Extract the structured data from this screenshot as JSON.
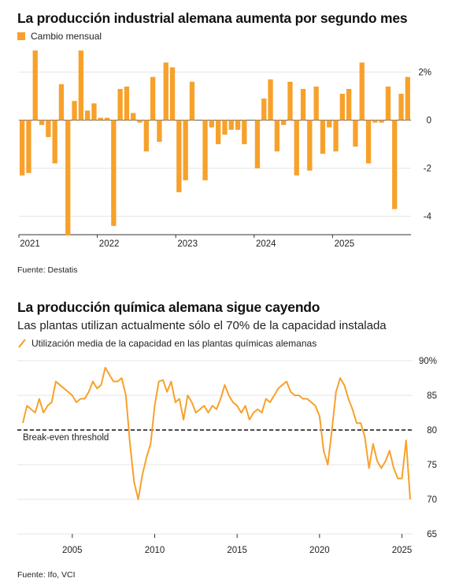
{
  "colors": {
    "accent": "#F7A12B",
    "grid": "#DDDDDD",
    "text": "#222222"
  },
  "chart_data": [
    {
      "type": "bar",
      "title": "La producción industrial alemana aumenta por segundo mes",
      "legend": "Cambio mensual",
      "legend_placement": "top-left",
      "source": "Fuente: Destatis",
      "yticks": [
        {
          "value": 2,
          "label": "2%"
        },
        {
          "value": 0,
          "label": "0"
        },
        {
          "value": -2,
          "label": "-2"
        },
        {
          "value": -4,
          "label": "-4"
        }
      ],
      "xticks": [
        "2021",
        "2022",
        "2023",
        "2024",
        "2025"
      ],
      "ylim": [
        -4.7,
        3.2
      ],
      "grid": true,
      "start": "2021-01",
      "values": [
        -2.3,
        -2.2,
        2.9,
        -0.2,
        -0.7,
        -1.8,
        1.5,
        -4.8,
        0.8,
        2.9,
        0.4,
        0.7,
        0.1,
        0.1,
        -4.4,
        1.3,
        1.4,
        0.3,
        -0.1,
        -1.3,
        1.8,
        -0.9,
        2.4,
        2.2,
        -3.0,
        -2.5,
        1.6,
        0.0,
        -2.5,
        -0.3,
        -1.0,
        -0.6,
        -0.4,
        -0.4,
        -1.0,
        0.0,
        -2.0,
        0.9,
        1.7,
        -1.3,
        -0.2,
        1.6,
        -2.3,
        1.3,
        -2.1,
        1.4,
        -1.4,
        -0.3,
        -1.3,
        1.1,
        1.3,
        -1.1,
        2.4,
        -1.8,
        -0.1,
        -0.1,
        1.4,
        -3.7,
        1.1,
        1.8
      ]
    },
    {
      "type": "line",
      "title": "La producción química alemana sigue cayendo",
      "subtitle": "Las plantas utilizan actualmente sólo el 70% de la capacidad instalada",
      "legend": "Utilización media de la capacidad en las plantas químicas alemanas",
      "legend_placement": "top-left",
      "source": "Fuente: Ifo, VCI",
      "yticks": [
        {
          "value": 90,
          "label": "90%"
        },
        {
          "value": 85,
          "label": "85"
        },
        {
          "value": 80,
          "label": "80"
        },
        {
          "value": 75,
          "label": "75"
        },
        {
          "value": 70,
          "label": "70"
        },
        {
          "value": 65,
          "label": "65"
        }
      ],
      "xticks": [
        "2005",
        "2010",
        "2015",
        "2020",
        "2025"
      ],
      "xlim": [
        2002.0,
        2025.75
      ],
      "ylim": [
        65,
        90
      ],
      "grid": true,
      "threshold": {
        "value": 80,
        "label": "Break-even threshold"
      },
      "x": [
        2002.0,
        2002.25,
        2002.5,
        2002.75,
        2003.0,
        2003.25,
        2003.5,
        2003.75,
        2004.0,
        2004.25,
        2004.5,
        2004.75,
        2005.0,
        2005.25,
        2005.5,
        2005.75,
        2006.0,
        2006.25,
        2006.5,
        2006.75,
        2007.0,
        2007.25,
        2007.5,
        2007.75,
        2008.0,
        2008.25,
        2008.5,
        2008.75,
        2009.0,
        2009.25,
        2009.5,
        2009.75,
        2010.0,
        2010.25,
        2010.5,
        2010.75,
        2011.0,
        2011.25,
        2011.5,
        2011.75,
        2012.0,
        2012.25,
        2012.5,
        2012.75,
        2013.0,
        2013.25,
        2013.5,
        2013.75,
        2014.0,
        2014.25,
        2014.5,
        2014.75,
        2015.0,
        2015.25,
        2015.5,
        2015.75,
        2016.0,
        2016.25,
        2016.5,
        2016.75,
        2017.0,
        2017.25,
        2017.5,
        2017.75,
        2018.0,
        2018.25,
        2018.5,
        2018.75,
        2019.0,
        2019.25,
        2019.5,
        2019.75,
        2020.0,
        2020.25,
        2020.5,
        2020.75,
        2021.0,
        2021.25,
        2021.5,
        2021.75,
        2022.0,
        2022.25,
        2022.5,
        2022.75,
        2023.0,
        2023.25,
        2023.5,
        2023.75,
        2024.0,
        2024.25,
        2024.5,
        2024.75,
        2025.0,
        2025.25,
        2025.5
      ],
      "y": [
        81.0,
        83.5,
        83.0,
        82.5,
        84.5,
        82.5,
        83.5,
        84.0,
        87.0,
        86.5,
        86.0,
        85.5,
        85.0,
        84.0,
        84.5,
        84.5,
        85.5,
        87.0,
        86.0,
        86.5,
        89.0,
        88.0,
        87.0,
        87.0,
        87.5,
        85.0,
        78.0,
        72.5,
        70.0,
        73.5,
        76.0,
        78.0,
        83.5,
        87.0,
        87.2,
        85.5,
        87.0,
        84.0,
        84.5,
        81.5,
        85.0,
        84.0,
        82.5,
        83.0,
        83.5,
        82.5,
        83.5,
        83.0,
        84.5,
        86.5,
        85.0,
        84.0,
        83.5,
        82.5,
        83.5,
        81.5,
        82.5,
        83.0,
        82.5,
        84.5,
        84.0,
        85.0,
        86.0,
        86.5,
        87.0,
        85.5,
        85.0,
        85.0,
        84.5,
        84.5,
        84.0,
        83.5,
        82.0,
        77.0,
        75.0,
        80.0,
        85.5,
        87.5,
        86.5,
        84.5,
        83.0,
        81.0,
        81.0,
        79.0,
        74.5,
        78.0,
        75.5,
        74.5,
        75.5,
        77.0,
        74.5,
        73.0,
        73.0,
        78.5,
        70.0
      ]
    }
  ]
}
